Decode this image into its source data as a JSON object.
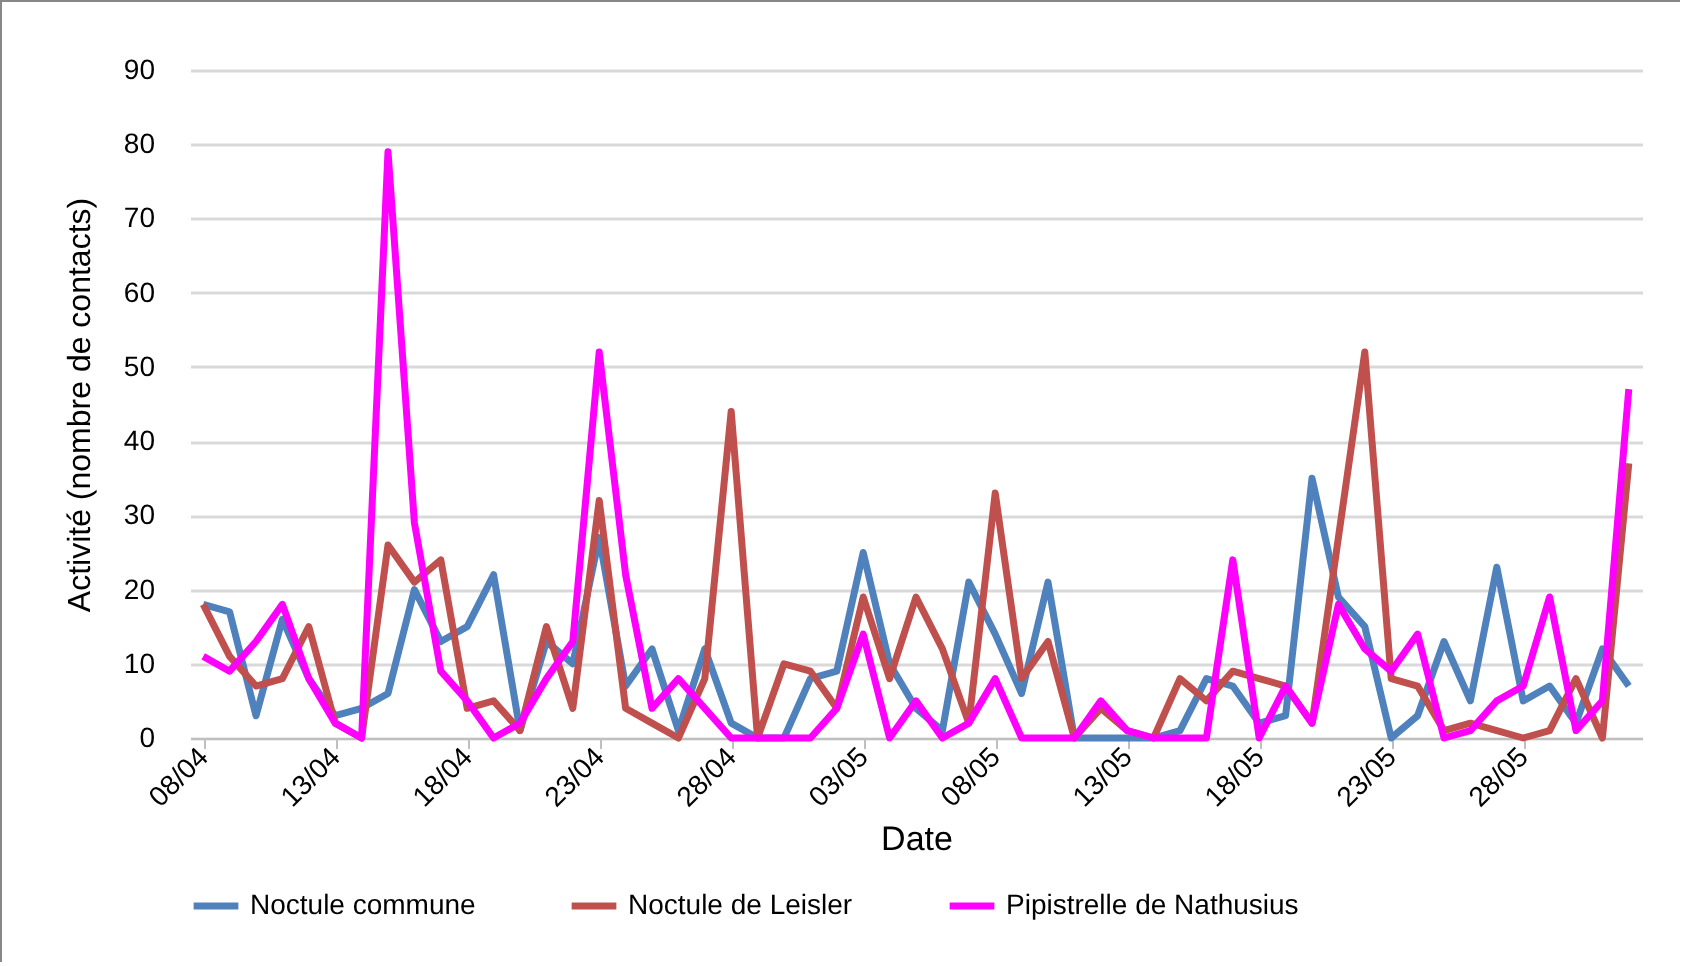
{
  "chart_data": {
    "type": "line",
    "xlabel": "Date",
    "ylabel": "Activité (nombre de contacts)",
    "categories": [
      "08/04",
      null,
      null,
      null,
      null,
      "13/04",
      null,
      null,
      null,
      null,
      "18/04",
      null,
      null,
      null,
      null,
      "23/04",
      null,
      null,
      null,
      null,
      "28/04",
      null,
      null,
      null,
      null,
      "03/05",
      null,
      null,
      null,
      null,
      "08/05",
      null,
      null,
      null,
      null,
      "13/05",
      null,
      null,
      null,
      null,
      "18/05",
      null,
      null,
      null,
      null,
      "23/05",
      null,
      null,
      null,
      null,
      "28/05",
      null,
      null,
      null,
      null
    ],
    "series": [
      {
        "name": "Noctule commune",
        "color": "#4f81bd",
        "values": [
          18,
          17,
          3,
          16,
          8,
          3,
          4,
          6,
          20,
          13,
          15,
          22,
          1,
          13,
          10,
          27,
          7,
          12,
          1,
          12,
          2,
          0,
          0,
          8,
          9,
          25,
          10,
          4,
          1,
          21,
          14,
          6,
          21,
          0,
          0,
          0,
          0,
          1,
          8,
          7,
          2,
          3,
          35,
          19,
          15,
          0,
          3,
          13,
          5,
          23,
          5,
          7,
          2,
          12,
          7
        ]
      },
      {
        "name": "Noctule de Leisler",
        "color": "#c0504d",
        "values": [
          18,
          11,
          7,
          8,
          15,
          2,
          0,
          26,
          21,
          24,
          4,
          5,
          1,
          15,
          4,
          32,
          4,
          2,
          0,
          8,
          44,
          0,
          10,
          9,
          4,
          19,
          8,
          19,
          12,
          2,
          33,
          8,
          13,
          0,
          4,
          1,
          0,
          8,
          5,
          9,
          8,
          7,
          2,
          27,
          52,
          8,
          7,
          1,
          2,
          1,
          0,
          1,
          8,
          0,
          37
        ]
      },
      {
        "name": "Pipistrelle de Nathusius",
        "color": "#ff00ff",
        "values": [
          11,
          9,
          13,
          18,
          8,
          2,
          0,
          79,
          29,
          9,
          5,
          0,
          2,
          8,
          13,
          52,
          22,
          4,
          8,
          4,
          0,
          0,
          0,
          0,
          4,
          14,
          0,
          5,
          0,
          2,
          8,
          0,
          0,
          0,
          5,
          1,
          0,
          0,
          0,
          24,
          0,
          7,
          2,
          18,
          12,
          9,
          14,
          0,
          1,
          5,
          7,
          19,
          1,
          5,
          47
        ]
      }
    ],
    "ylim": [
      0,
      90
    ],
    "yticks": [
      0,
      10,
      20,
      30,
      40,
      50,
      60,
      70,
      80,
      90
    ],
    "grid": "y",
    "legend": "bottom",
    "marker": "none",
    "line_style": "solid"
  }
}
